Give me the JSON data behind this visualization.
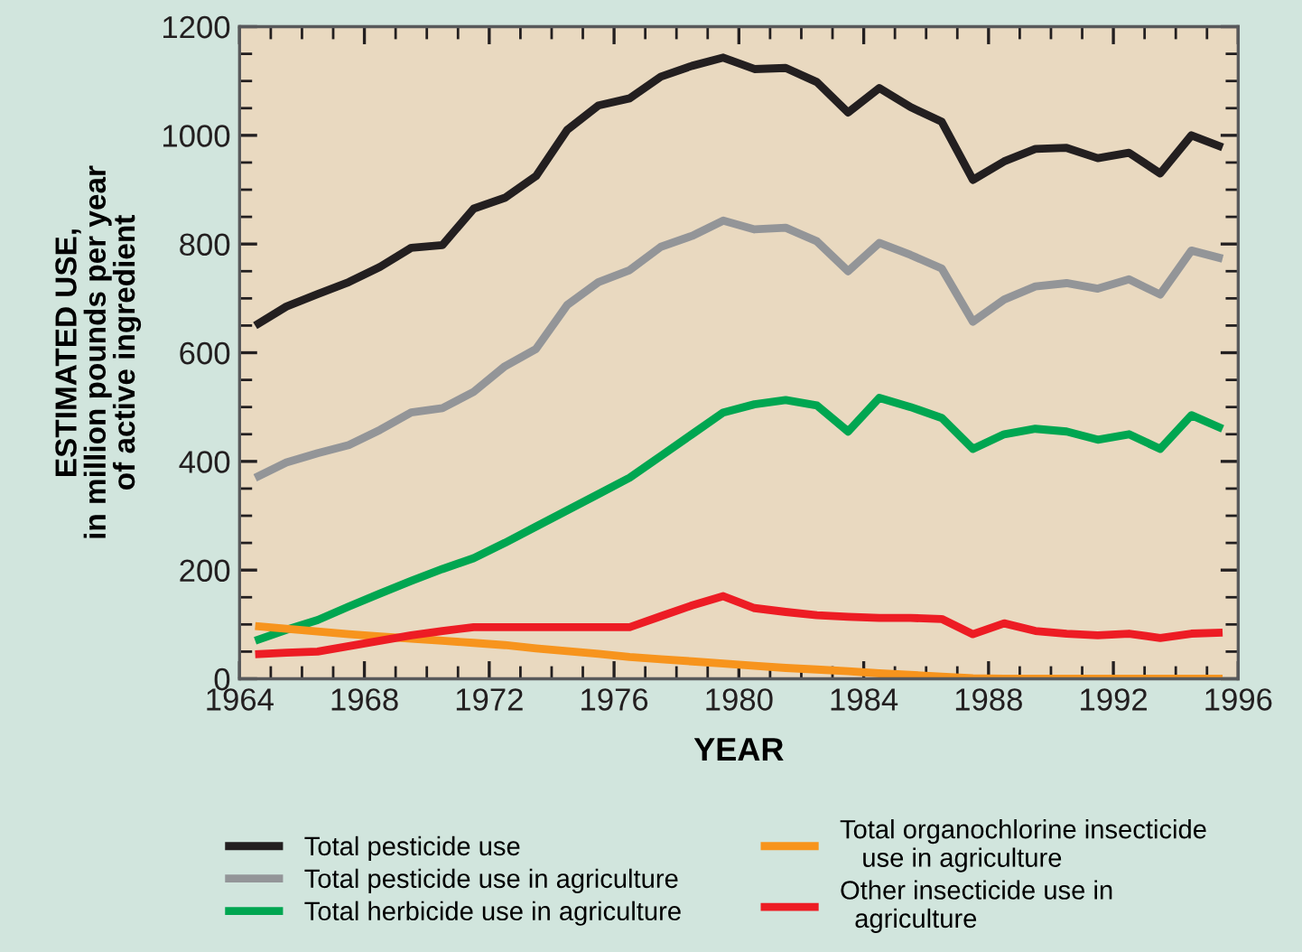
{
  "chart_data": {
    "type": "line",
    "xlabel": "YEAR",
    "ylabel": "ESTIMATED USE,\nin million pounds per year\nof active ingredient",
    "x": [
      1964.5,
      1965.5,
      1966.5,
      1967.5,
      1968.5,
      1969.5,
      1970.5,
      1971.5,
      1972.5,
      1973.5,
      1974.5,
      1975.5,
      1976.5,
      1977.5,
      1978.5,
      1979.5,
      1980.5,
      1981.5,
      1982.5,
      1983.5,
      1984.5,
      1985.5,
      1986.5,
      1987.5,
      1988.5,
      1989.5,
      1990.5,
      1991.5,
      1992.5,
      1993.5,
      1994.5,
      1995.5
    ],
    "series": [
      {
        "name": "Total pesticide use",
        "color": "#231f20",
        "values": [
          650,
          685,
          708,
          730,
          758,
          793,
          798,
          865,
          885,
          925,
          1010,
          1055,
          1068,
          1108,
          1128,
          1143,
          1122,
          1124,
          1098,
          1042,
          1087,
          1052,
          1025,
          918,
          952,
          975,
          977,
          958,
          968,
          930,
          1000,
          978
        ]
      },
      {
        "name": "Total pesticide use in agriculture",
        "color": "#939598",
        "values": [
          370,
          398,
          415,
          430,
          458,
          490,
          498,
          528,
          575,
          607,
          688,
          730,
          752,
          795,
          815,
          843,
          827,
          830,
          805,
          750,
          802,
          780,
          755,
          657,
          698,
          722,
          728,
          718,
          735,
          707,
          788,
          773
        ]
      },
      {
        "name": "Total herbicide use in agriculture",
        "color": "#00a651",
        "values": [
          70,
          90,
          108,
          133,
          157,
          180,
          202,
          222,
          250,
          280,
          310,
          340,
          370,
          410,
          450,
          490,
          505,
          513,
          503,
          455,
          517,
          500,
          480,
          423,
          450,
          460,
          455,
          440,
          450,
          423,
          485,
          460
        ]
      },
      {
        "name": "Total organochlorine insecticide\n   use in agriculture",
        "color": "#f7941d",
        "values": [
          97,
          92,
          87,
          82,
          78,
          74,
          70,
          66,
          62,
          56,
          51,
          46,
          40,
          36,
          32,
          28,
          24,
          20,
          17,
          14,
          10,
          7,
          4,
          1,
          0,
          0,
          0,
          0,
          0,
          0,
          0,
          0
        ]
      },
      {
        "name": "Other insecticide use in\n  agriculture",
        "color": "#ed1c24",
        "values": [
          45,
          48,
          50,
          60,
          70,
          80,
          88,
          95,
          95,
          95,
          95,
          95,
          95,
          115,
          135,
          152,
          130,
          123,
          117,
          114,
          112,
          112,
          110,
          82,
          102,
          88,
          83,
          80,
          83,
          75,
          83,
          85
        ]
      }
    ],
    "xlim": [
      1964,
      1996
    ],
    "xticks": [
      1964,
      1968,
      1972,
      1976,
      1980,
      1984,
      1988,
      1992,
      1996
    ],
    "ylim": [
      0,
      1200
    ],
    "yticks": [
      0,
      200,
      400,
      600,
      800,
      1000,
      1200
    ],
    "grid": false,
    "legend": "bottom",
    "marker": "none",
    "line_style": "solid"
  }
}
